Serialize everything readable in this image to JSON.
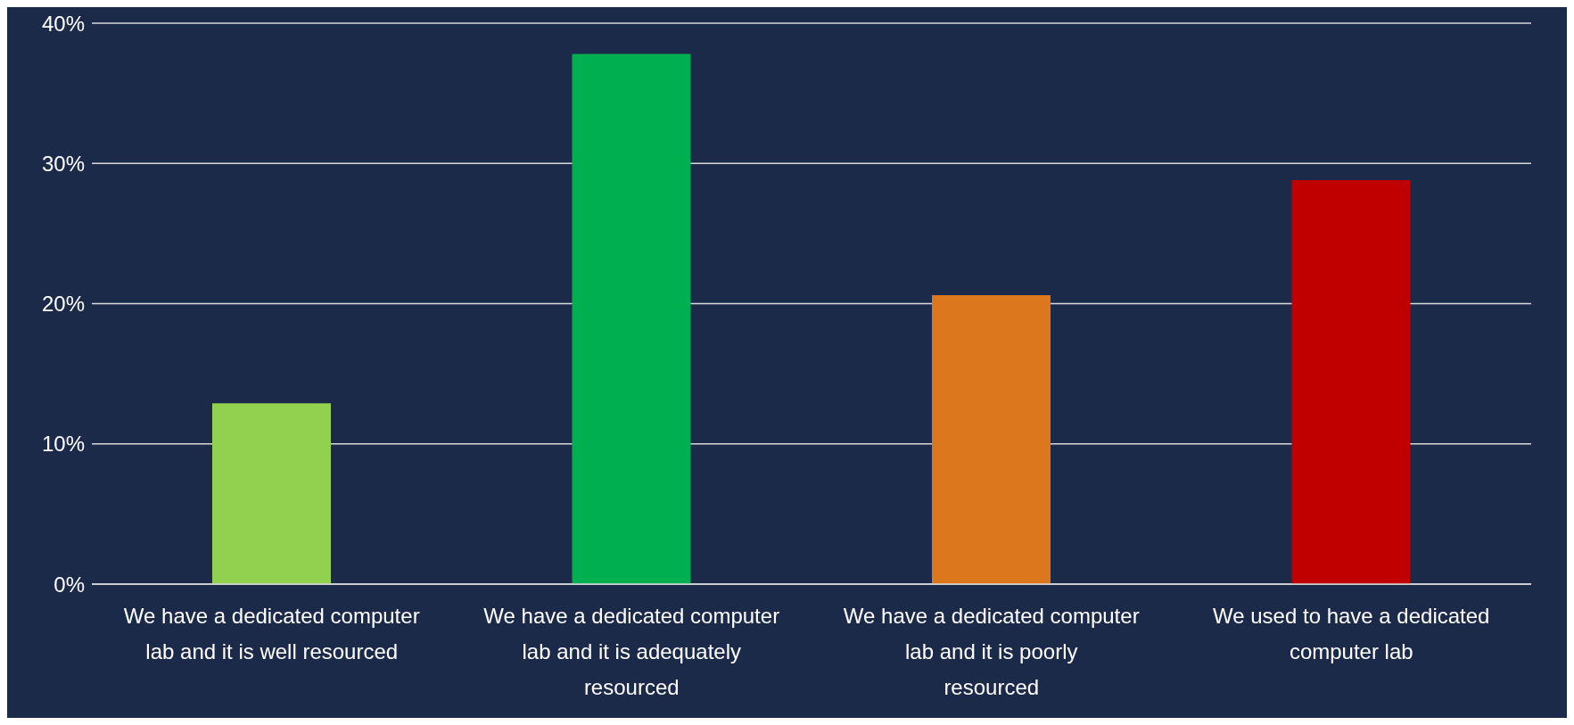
{
  "chart_data": {
    "type": "bar",
    "categories": [
      "We have a dedicated computer lab and it is well resourced",
      "We have a dedicated computer lab and it is adequately resourced",
      "We have a dedicated computer lab and it is poorly resourced",
      "We used to have a dedicated computer lab"
    ],
    "values": [
      12.9,
      37.8,
      20.6,
      28.8
    ],
    "colors": [
      "#92d050",
      "#00b050",
      "#dc771e",
      "#c00000"
    ],
    "ylim": [
      0,
      40
    ],
    "yticks": [
      {
        "value": 0,
        "label": "0%"
      },
      {
        "value": 10,
        "label": "10%"
      },
      {
        "value": 20,
        "label": "20%"
      },
      {
        "value": 30,
        "label": "30%"
      },
      {
        "value": 40,
        "label": "40%"
      }
    ],
    "grid": "y"
  }
}
